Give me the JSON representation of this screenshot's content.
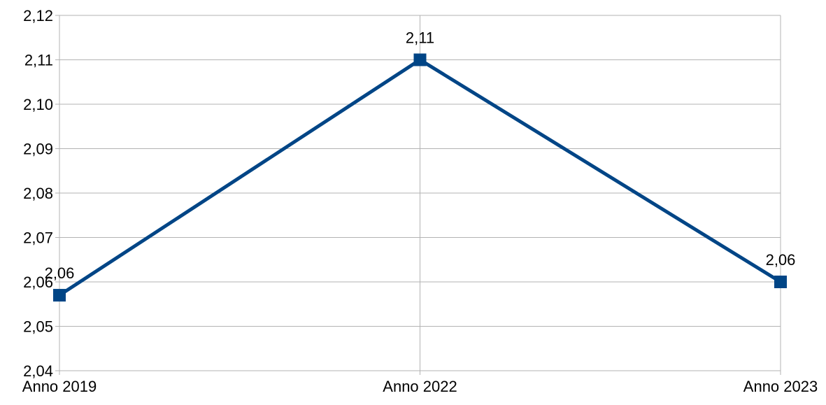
{
  "chart_data": {
    "type": "line",
    "title": "",
    "xlabel": "",
    "ylabel": "",
    "categories": [
      "Anno 2019",
      "Anno 2022",
      "Anno 2023"
    ],
    "series": [
      {
        "values": [
          2.057,
          2.11,
          2.06
        ],
        "data_labels": [
          "2,06",
          "2,11",
          "2,06"
        ],
        "color": "#004586",
        "marker": "square"
      }
    ],
    "ylim": [
      2.04,
      2.12
    ],
    "y_ticks": [
      2.04,
      2.05,
      2.06,
      2.07,
      2.08,
      2.09,
      2.1,
      2.11,
      2.12
    ],
    "y_tick_labels": [
      "2,04",
      "2,05",
      "2,06",
      "2,07",
      "2,08",
      "2,09",
      "2,10",
      "2,11",
      "2,12"
    ],
    "grid": true,
    "grid_color": "#b3b3b3",
    "legend": "none"
  }
}
